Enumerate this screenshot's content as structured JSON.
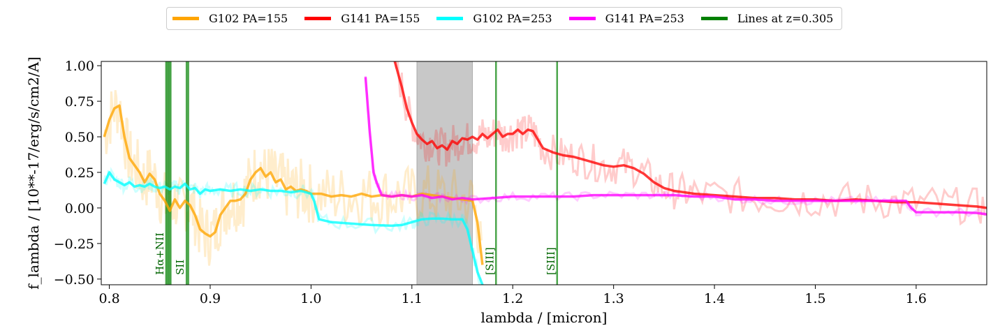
{
  "chart_data": {
    "type": "line",
    "title": "",
    "xlabel": "lambda / [micron]",
    "ylabel": "f_lambda / [10**-17/erg/s/cm2/A]",
    "xlim": [
      0.792,
      1.67
    ],
    "ylim": [
      -0.54,
      1.03
    ],
    "xticks": [
      "0.8",
      "0.9",
      "1.0",
      "1.1",
      "1.2",
      "1.3",
      "1.4",
      "1.5",
      "1.6"
    ],
    "yticks": [
      "−0.50",
      "−0.25",
      "0.00",
      "0.25",
      "0.50",
      "0.75",
      "1.00"
    ],
    "grid": false,
    "legend_position": "top-center",
    "shaded_band": {
      "x": [
        1.105,
        1.16
      ],
      "color": "#c8c8c8"
    },
    "series": [
      {
        "name": "G102 PA=155",
        "color": "#FFA500",
        "x": [
          0.795,
          0.8,
          0.805,
          0.81,
          0.815,
          0.82,
          0.825,
          0.83,
          0.835,
          0.84,
          0.845,
          0.85,
          0.855,
          0.86,
          0.865,
          0.87,
          0.875,
          0.88,
          0.885,
          0.89,
          0.895,
          0.9,
          0.905,
          0.91,
          0.915,
          0.92,
          0.925,
          0.93,
          0.935,
          0.94,
          0.945,
          0.95,
          0.955,
          0.96,
          0.965,
          0.97,
          0.975,
          0.98,
          0.985,
          0.99,
          0.995,
          1.0,
          1.01,
          1.02,
          1.03,
          1.04,
          1.05,
          1.06,
          1.07,
          1.08,
          1.09,
          1.1,
          1.11,
          1.12,
          1.13,
          1.14,
          1.15,
          1.16,
          1.165,
          1.17
        ],
        "y": [
          0.5,
          0.62,
          0.7,
          0.72,
          0.5,
          0.35,
          0.3,
          0.25,
          0.18,
          0.24,
          0.2,
          0.1,
          0.05,
          -0.02,
          0.06,
          0.0,
          0.05,
          0.02,
          -0.05,
          -0.15,
          -0.18,
          -0.2,
          -0.17,
          -0.05,
          0.0,
          0.05,
          0.05,
          0.06,
          0.1,
          0.2,
          0.25,
          0.28,
          0.22,
          0.25,
          0.18,
          0.2,
          0.13,
          0.15,
          0.12,
          0.13,
          0.12,
          0.1,
          0.1,
          0.08,
          0.09,
          0.08,
          0.1,
          0.08,
          0.09,
          0.08,
          0.09,
          0.08,
          0.1,
          0.09,
          0.08,
          0.07,
          0.06,
          0.05,
          -0.1,
          -0.4
        ]
      },
      {
        "name": "G141 PA=155",
        "color": "#FF0000",
        "x": [
          1.083,
          1.09,
          1.095,
          1.1,
          1.105,
          1.11,
          1.115,
          1.12,
          1.125,
          1.13,
          1.135,
          1.14,
          1.145,
          1.15,
          1.155,
          1.16,
          1.165,
          1.17,
          1.175,
          1.18,
          1.185,
          1.19,
          1.195,
          1.2,
          1.205,
          1.21,
          1.215,
          1.22,
          1.225,
          1.23,
          1.24,
          1.25,
          1.26,
          1.27,
          1.28,
          1.29,
          1.3,
          1.31,
          1.32,
          1.33,
          1.34,
          1.35,
          1.36,
          1.37,
          1.38,
          1.4,
          1.42,
          1.44,
          1.46,
          1.48,
          1.5,
          1.52,
          1.54,
          1.56,
          1.58,
          1.6,
          1.62,
          1.64,
          1.66,
          1.67
        ],
        "y": [
          1.03,
          0.85,
          0.7,
          0.6,
          0.52,
          0.48,
          0.45,
          0.47,
          0.42,
          0.44,
          0.41,
          0.47,
          0.45,
          0.49,
          0.48,
          0.5,
          0.48,
          0.52,
          0.49,
          0.52,
          0.55,
          0.5,
          0.52,
          0.52,
          0.55,
          0.52,
          0.55,
          0.54,
          0.48,
          0.42,
          0.39,
          0.37,
          0.36,
          0.34,
          0.32,
          0.3,
          0.29,
          0.3,
          0.28,
          0.24,
          0.18,
          0.14,
          0.12,
          0.11,
          0.1,
          0.09,
          0.08,
          0.07,
          0.07,
          0.06,
          0.06,
          0.05,
          0.06,
          0.05,
          0.04,
          0.04,
          0.03,
          0.02,
          0.01,
          0.0
        ]
      },
      {
        "name": "G102 PA=253",
        "color": "#00FFFF",
        "x": [
          0.795,
          0.8,
          0.805,
          0.81,
          0.815,
          0.82,
          0.825,
          0.83,
          0.835,
          0.84,
          0.845,
          0.85,
          0.855,
          0.86,
          0.865,
          0.87,
          0.875,
          0.88,
          0.885,
          0.89,
          0.895,
          0.9,
          0.91,
          0.92,
          0.93,
          0.94,
          0.95,
          0.96,
          0.97,
          0.98,
          0.99,
          1.0,
          1.003,
          1.008,
          1.02,
          1.04,
          1.06,
          1.08,
          1.09,
          1.1,
          1.105,
          1.11,
          1.12,
          1.13,
          1.14,
          1.15,
          1.155,
          1.16,
          1.165,
          1.17
        ],
        "y": [
          0.17,
          0.25,
          0.2,
          0.18,
          0.16,
          0.18,
          0.15,
          0.16,
          0.15,
          0.17,
          0.15,
          0.14,
          0.15,
          0.13,
          0.15,
          0.14,
          0.17,
          0.13,
          0.14,
          0.1,
          0.13,
          0.12,
          0.13,
          0.12,
          0.13,
          0.12,
          0.13,
          0.12,
          0.12,
          0.11,
          0.12,
          0.1,
          0.05,
          -0.08,
          -0.1,
          -0.11,
          -0.12,
          -0.125,
          -0.12,
          -0.1,
          -0.09,
          -0.08,
          -0.075,
          -0.075,
          -0.08,
          -0.08,
          -0.15,
          -0.3,
          -0.45,
          -0.54
        ]
      },
      {
        "name": "G141 PA=253",
        "color": "#FF00FF",
        "x": [
          1.054,
          1.058,
          1.062,
          1.065,
          1.07,
          1.08,
          1.09,
          1.1,
          1.11,
          1.12,
          1.13,
          1.14,
          1.15,
          1.16,
          1.18,
          1.2,
          1.22,
          1.24,
          1.26,
          1.28,
          1.3,
          1.32,
          1.34,
          1.36,
          1.38,
          1.4,
          1.42,
          1.44,
          1.46,
          1.48,
          1.5,
          1.52,
          1.54,
          1.56,
          1.58,
          1.59,
          1.595,
          1.6,
          1.62,
          1.64,
          1.66,
          1.67
        ],
        "y": [
          0.92,
          0.55,
          0.25,
          0.18,
          0.09,
          0.08,
          0.09,
          0.08,
          0.09,
          0.07,
          0.08,
          0.06,
          0.07,
          0.06,
          0.07,
          0.08,
          0.08,
          0.08,
          0.08,
          0.09,
          0.09,
          0.09,
          0.09,
          0.09,
          0.08,
          0.08,
          0.06,
          0.06,
          0.05,
          0.05,
          0.05,
          0.05,
          0.05,
          0.05,
          0.05,
          0.05,
          0.0,
          -0.03,
          -0.03,
          -0.03,
          -0.035,
          -0.045
        ]
      },
      {
        "name": "Lines at z=0.305",
        "color": "#008000"
      }
    ],
    "emission_lines": [
      {
        "label": "Hα+NII",
        "x": [
          0.8563,
          0.8578,
          0.8593,
          0.8608
        ]
      },
      {
        "label": "SII",
        "x": [
          0.8766,
          0.8783
        ]
      },
      {
        "label": "[SIII]",
        "x": [
          1.1834
        ]
      },
      {
        "label": "[SIII]",
        "x": [
          1.244
        ]
      }
    ]
  }
}
